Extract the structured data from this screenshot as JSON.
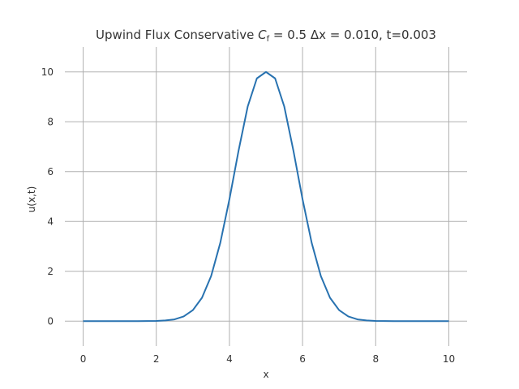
{
  "chart_data": {
    "type": "line",
    "title": "Upwind Flux Conservative C_f = 0.5 Δx = 0.010, t=0.003",
    "title_parts": {
      "prefix": "Upwind Flux Conservative ",
      "c_symbol": "C",
      "c_sub": "f",
      "rest": " = 0.5 Δx = 0.010, t=0.003"
    },
    "xlabel": "x",
    "ylabel": "u(x,t)",
    "xlim": [
      -0.5,
      10.5
    ],
    "ylim": [
      -1.0,
      11.0
    ],
    "xticks": [
      0,
      2,
      4,
      6,
      8,
      10
    ],
    "yticks": [
      0,
      2,
      4,
      6,
      8,
      10
    ],
    "grid": true,
    "line_color": "#2872b0",
    "series": [
      {
        "x": [
          0,
          0.5,
          1,
          1.5,
          2,
          2.25,
          2.5,
          2.75,
          3,
          3.25,
          3.5,
          3.75,
          4,
          4.25,
          4.5,
          4.75,
          5,
          5.25,
          5.5,
          5.75,
          6,
          6.25,
          6.5,
          6.75,
          7,
          7.25,
          7.5,
          7.75,
          8,
          8.5,
          9,
          9.5,
          10
        ],
        "values": [
          0,
          0,
          0,
          0,
          0.01,
          0.03,
          0.07,
          0.19,
          0.44,
          0.94,
          1.81,
          3.14,
          4.89,
          6.84,
          8.61,
          9.74,
          10.0,
          9.74,
          8.61,
          6.84,
          4.89,
          3.14,
          1.81,
          0.94,
          0.44,
          0.19,
          0.07,
          0.03,
          0.01,
          0,
          0,
          0,
          0
        ]
      }
    ]
  }
}
